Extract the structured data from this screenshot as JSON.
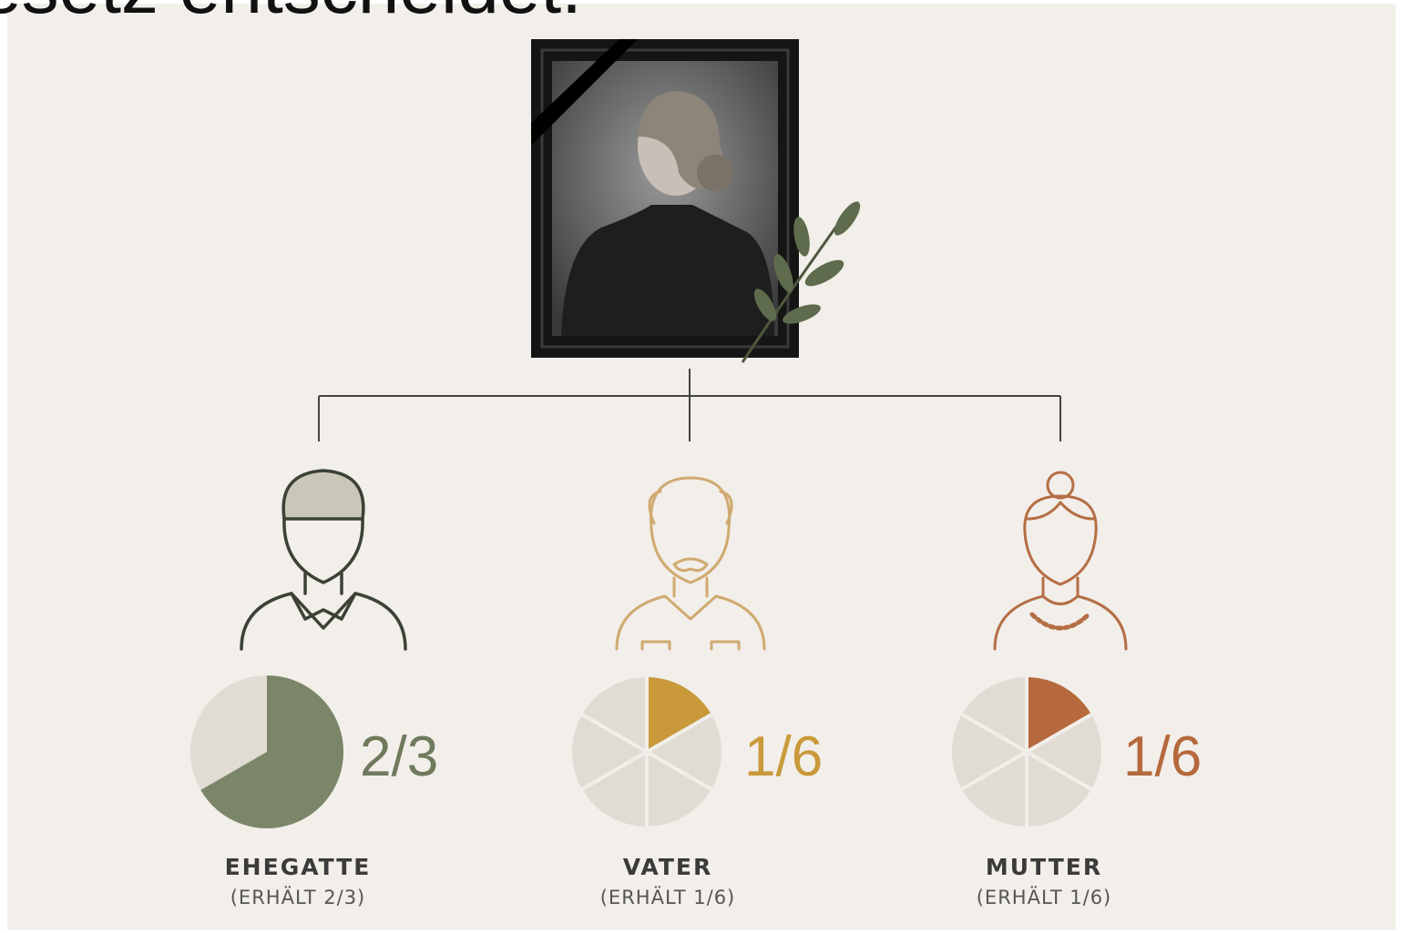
{
  "header": {
    "title": "esetz entscheidet."
  },
  "heirs": [
    {
      "share": "2/3",
      "name": "EHEGATTE",
      "note": "(ERHÄLT 2/3)"
    },
    {
      "share": "1/6",
      "name": "VATER",
      "note": "(ERHÄLT 1/6)"
    },
    {
      "share": "1/6",
      "name": "MUTTER",
      "note": "(ERHÄLT 1/6)"
    }
  ]
}
